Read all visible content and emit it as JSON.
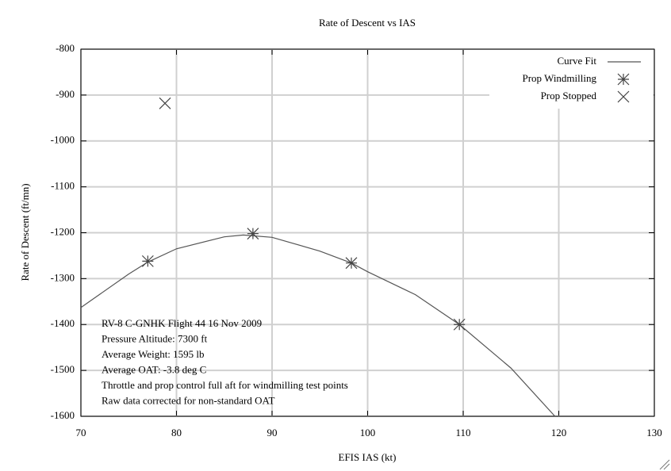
{
  "chart_data": {
    "type": "scatter",
    "title": "Rate of Descent vs IAS",
    "x_label": "EFIS IAS (kt)",
    "y_label": "Rate of Descent (ft/mn)",
    "xlim": [
      70,
      130
    ],
    "xticks": [
      70,
      80,
      90,
      100,
      110,
      120,
      130
    ],
    "ylim": [
      -1600,
      -800
    ],
    "yticks": [
      -800,
      -900,
      -1000,
      -1100,
      -1200,
      -1300,
      -1400,
      -1500,
      -1600
    ],
    "grid": true,
    "legend": "top-right",
    "series": [
      {
        "name": "Curve Fit",
        "style": "line",
        "color": "#555555",
        "x": [
          70,
          75,
          77,
          80,
          85,
          87,
          90,
          95,
          98.3,
          100,
          105,
          109.6,
          115,
          119.6
        ],
        "values": [
          -1363,
          -1290,
          -1264,
          -1235,
          -1209,
          -1205,
          -1210,
          -1240,
          -1266,
          -1285,
          -1335,
          -1400,
          -1495,
          -1600
        ]
      },
      {
        "name": "Prop Windmilling",
        "style": "asterisk",
        "color": "#444444",
        "x": [
          77,
          88,
          98.3,
          109.6
        ],
        "values": [
          -1262,
          -1202,
          -1266,
          -1400
        ]
      },
      {
        "name": "Prop Stopped",
        "style": "cross",
        "color": "#444444",
        "x": [
          78.8
        ],
        "values": [
          -918
        ]
      }
    ],
    "annotations": [
      "RV-8 C-GNHK Flight 44 16 Nov 2009",
      "Pressure Altitude: 7300 ft",
      "Average Weight: 1595 lb",
      "Average OAT: -3.8 deg C",
      "Throttle and prop control full aft for windmilling test points",
      "Raw data corrected for non-standard OAT"
    ]
  }
}
